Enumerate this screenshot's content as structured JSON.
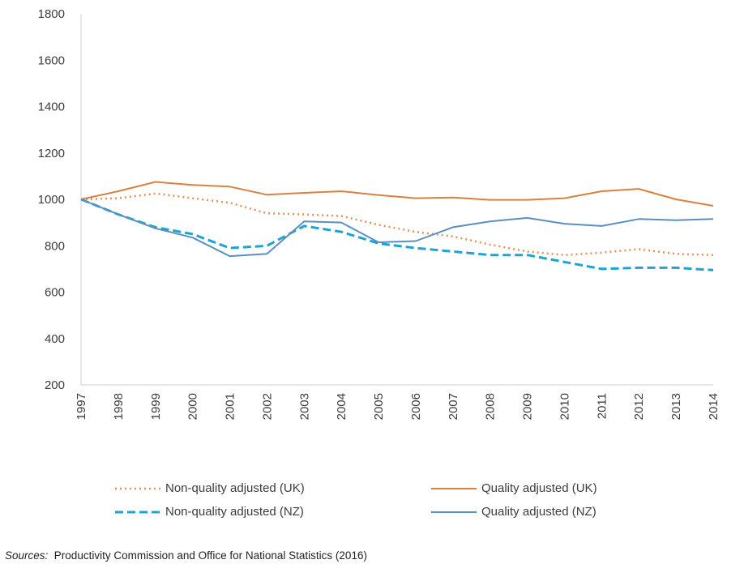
{
  "chart_data": {
    "type": "line",
    "title": "",
    "xlabel": "",
    "ylabel": "",
    "ylim": [
      200,
      1800
    ],
    "yticks": [
      200,
      400,
      600,
      800,
      1000,
      1200,
      1400,
      1600,
      1800
    ],
    "grid": false,
    "legend_position": "bottom",
    "x": [
      "1997",
      "1998",
      "1999",
      "2000",
      "2001",
      "2002",
      "2003",
      "2004",
      "2005",
      "2006",
      "2007",
      "2008",
      "2009",
      "2010",
      "2011",
      "2012",
      "2013",
      "2014"
    ],
    "series": [
      {
        "name": "Non-quality adjusted (UK)",
        "color": "#E0925A",
        "style": "dotted",
        "values": [
          1000,
          1005,
          1025,
          1005,
          985,
          940,
          935,
          928,
          890,
          860,
          840,
          805,
          775,
          760,
          770,
          785,
          765,
          760
        ]
      },
      {
        "name": "Quality adjusted (UK)",
        "color": "#D9813F",
        "style": "solid",
        "values": [
          1000,
          1035,
          1075,
          1062,
          1055,
          1020,
          1028,
          1035,
          1018,
          1005,
          1008,
          998,
          998,
          1005,
          1035,
          1045,
          1000,
          972
        ]
      },
      {
        "name": "Non-quality adjusted (NZ)",
        "color": "#1FA3D0",
        "style": "dashed",
        "values": [
          1000,
          935,
          880,
          850,
          790,
          800,
          885,
          860,
          810,
          790,
          775,
          760,
          760,
          730,
          700,
          705,
          705,
          695
        ]
      },
      {
        "name": "Quality adjusted (NZ)",
        "color": "#5B8FC0",
        "style": "solid",
        "values": [
          1000,
          935,
          875,
          835,
          755,
          765,
          905,
          900,
          815,
          820,
          880,
          905,
          920,
          895,
          885,
          915,
          910,
          915
        ]
      }
    ]
  },
  "legend": {
    "items": [
      {
        "label": "Non-quality adjusted (UK)"
      },
      {
        "label": "Quality adjusted (UK)"
      },
      {
        "label": "Non-quality adjusted (NZ)"
      },
      {
        "label": "Quality adjusted (NZ)"
      }
    ]
  },
  "source": {
    "prefix": "Sources:",
    "text": "Productivity Commission and Office for National Statistics (2016)"
  }
}
